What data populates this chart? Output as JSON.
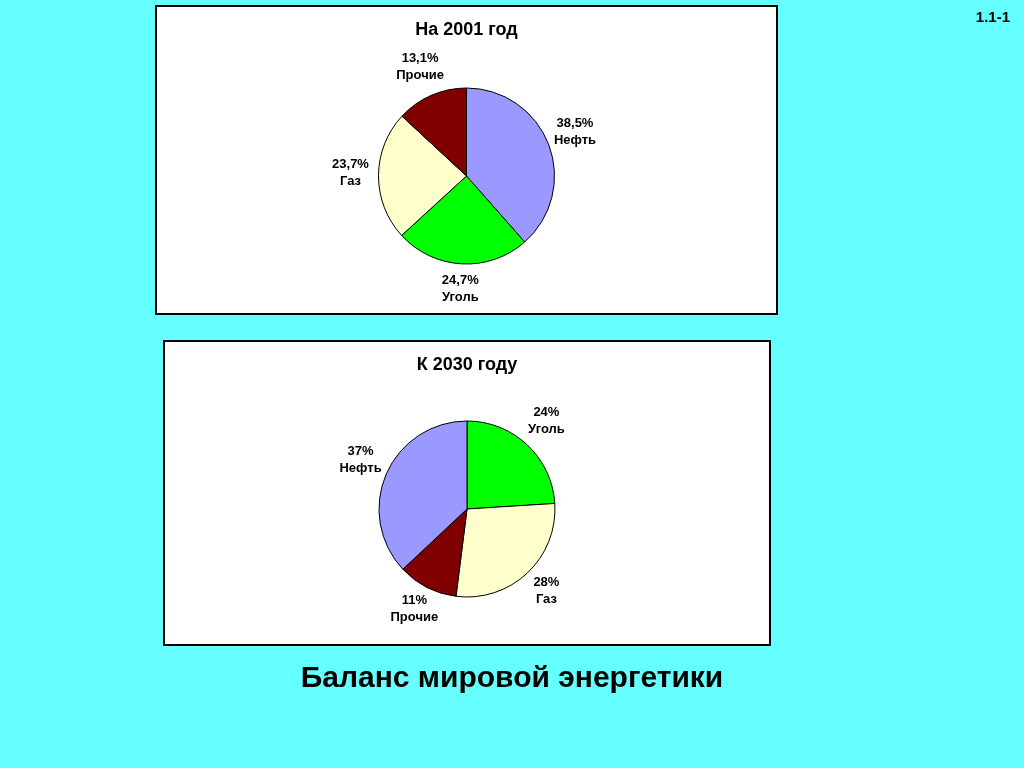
{
  "chart_data": [
    {
      "type": "pie",
      "title": "На 2001 год",
      "categories": [
        "Нефть",
        "Уголь",
        "Газ",
        "Прочие"
      ],
      "values": [
        38.5,
        24.7,
        23.7,
        13.1
      ],
      "colors": [
        "#9999ff",
        "#00ff00",
        "#ffffcc",
        "#800000"
      ],
      "value_labels": [
        "38,5%",
        "24,7%",
        "23,7%",
        "13,1%"
      ],
      "annotations": [
        "1.1-1"
      ]
    },
    {
      "type": "pie",
      "title": "К 2030 году",
      "categories": [
        "Уголь",
        "Газ",
        "Прочие",
        "Нефть"
      ],
      "values": [
        24,
        28,
        11,
        37
      ],
      "colors": [
        "#00ff00",
        "#ffffcc",
        "#800000",
        "#9999ff"
      ],
      "value_labels": [
        "24%",
        "28%",
        "11%",
        "37%"
      ],
      "annotations": [
        "Баланс мировой энергетики"
      ]
    }
  ]
}
